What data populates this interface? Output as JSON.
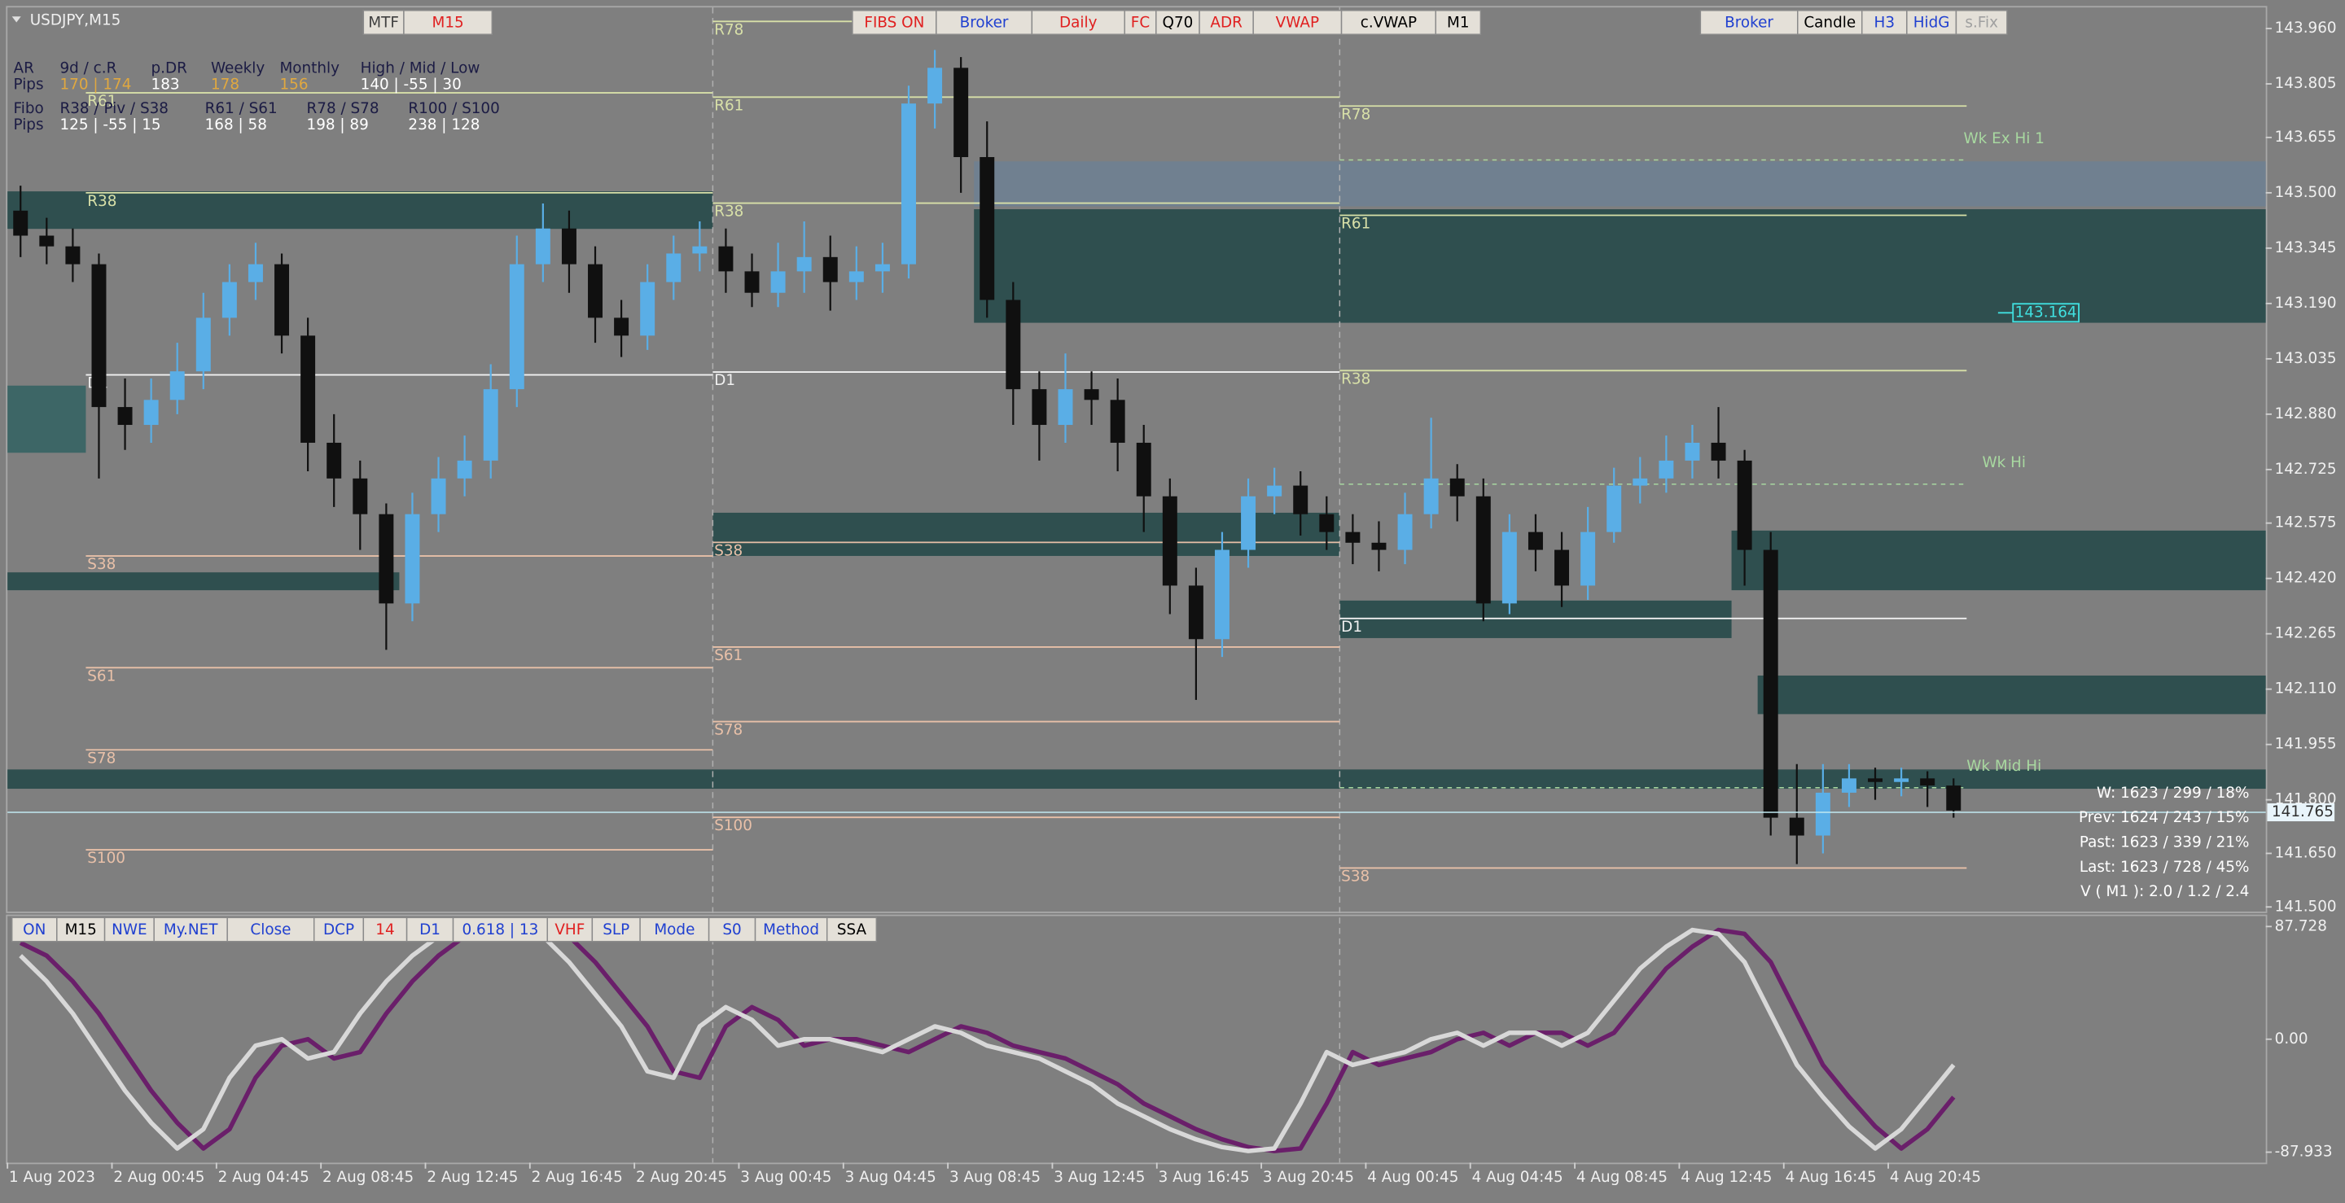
{
  "window": {
    "title": "USDJPY,M15"
  },
  "toolbar_top": [
    {
      "label": "MTF",
      "color": "#404040"
    },
    {
      "label": "M15",
      "color": "#e02020"
    },
    {
      "label": "FIBS ON",
      "color": "#e02020"
    },
    {
      "label": "Broker",
      "color": "#2040d0"
    },
    {
      "label": "Daily",
      "color": "#e02020"
    },
    {
      "label": "FC",
      "color": "#e02020"
    },
    {
      "label": "Q70",
      "color": "#000000"
    },
    {
      "label": "ADR",
      "color": "#e02020"
    },
    {
      "label": "VWAP",
      "color": "#e02020"
    },
    {
      "label": "c.VWAP",
      "color": "#000000"
    },
    {
      "label": "M1",
      "color": "#000000"
    }
  ],
  "toolbar_right": [
    {
      "label": "Broker",
      "color": "#2040d0"
    },
    {
      "label": "Candle",
      "color": "#000000"
    },
    {
      "label": "H3",
      "color": "#2040d0"
    },
    {
      "label": "HidG",
      "color": "#2040d0"
    },
    {
      "label": "s.Fix",
      "color": "#a0a0a0"
    }
  ],
  "toolbar_bottom": [
    {
      "label": "ON",
      "color": "#2040d0"
    },
    {
      "label": "M15",
      "color": "#000000"
    },
    {
      "label": "NWE",
      "color": "#2040d0"
    },
    {
      "label": "My.NET",
      "color": "#2040d0"
    },
    {
      "label": "Close",
      "color": "#2040d0"
    },
    {
      "label": "DCP",
      "color": "#2040d0"
    },
    {
      "label": "14",
      "color": "#e02020"
    },
    {
      "label": "D1",
      "color": "#2040d0"
    },
    {
      "label": "0.618 | 13",
      "color": "#2040d0"
    },
    {
      "label": "VHF",
      "color": "#e02020"
    },
    {
      "label": "SLP",
      "color": "#2040d0"
    },
    {
      "label": "Mode",
      "color": "#2040d0"
    },
    {
      "label": "S0",
      "color": "#2040d0"
    },
    {
      "label": "Method",
      "color": "#2040d0"
    },
    {
      "label": "SSA",
      "color": "#000000"
    }
  ],
  "info_table": {
    "rows": [
      [
        "AR",
        "9d / c.R",
        "p.DR",
        "Weekly",
        "Monthly",
        "High / Mid / Low"
      ],
      [
        "Pips",
        "170 | 174",
        "183",
        "178",
        "156",
        "140 | -55 | 30"
      ],
      [
        "Fibo",
        "R38 / Piv / S38",
        "R61 / S61",
        "R78 / S78",
        "R100 / S100"
      ],
      [
        "Pips",
        "125 | -55 | 15",
        "168 | 58",
        "198 | 89",
        "238 | 128"
      ]
    ]
  },
  "stats": [
    "W: 1623 / 299 / 18%",
    "Prev: 1624 / 243 / 15%",
    "Past: 1623 / 339 / 21%",
    "Last: 1623 / 728 / 45%",
    "V ( M1 ): 2.0 / 1.2 / 2.4"
  ],
  "chart_data": [
    {
      "type": "candlestick",
      "categories": [
        "1 Aug 2023",
        null,
        null,
        null,
        "2 Aug 00:45",
        null,
        null,
        null,
        "2 Aug 04:45",
        null,
        null,
        null,
        "2 Aug 08:45",
        null,
        null,
        null,
        "2 Aug 12:45",
        null,
        null,
        null,
        "2 Aug 16:45",
        null,
        null,
        null,
        "2 Aug 20:45",
        null,
        null,
        null,
        "3 Aug 00:45",
        null,
        null,
        null,
        "3 Aug 04:45",
        null,
        null,
        null,
        "3 Aug 08:45",
        null,
        null,
        null,
        "3 Aug 12:45",
        null,
        null,
        null,
        "3 Aug 16:45",
        null,
        null,
        null,
        "3 Aug 20:45",
        null,
        null,
        null,
        "4 Aug 00:45",
        null,
        null,
        null,
        "4 Aug 04:45",
        null,
        null,
        null,
        "4 Aug 08:45",
        null,
        null,
        null,
        "4 Aug 12:45",
        null,
        null,
        null,
        "4 Aug 16:45",
        null,
        null,
        null,
        "4 Aug 20:45",
        null,
        null
      ],
      "open": [
        143.45,
        143.38,
        143.35,
        143.3,
        142.9,
        142.85,
        142.92,
        143.0,
        143.15,
        143.25,
        143.3,
        143.1,
        142.8,
        142.7,
        142.6,
        142.35,
        142.6,
        142.7,
        142.75,
        142.95,
        143.3,
        143.4,
        143.3,
        143.15,
        143.1,
        143.25,
        143.33,
        143.35,
        143.28,
        143.22,
        143.28,
        143.32,
        143.25,
        143.28,
        143.3,
        143.75,
        143.85,
        143.6,
        143.2,
        142.95,
        142.85,
        142.95,
        142.92,
        142.8,
        142.65,
        142.4,
        142.25,
        142.5,
        142.65,
        142.68,
        142.6,
        142.55,
        142.52,
        142.5,
        142.6,
        142.7,
        142.65,
        142.35,
        142.55,
        142.5,
        142.4,
        142.55,
        142.68,
        142.7,
        142.75,
        142.8,
        142.75,
        142.5,
        141.75,
        141.7,
        141.82,
        141.86,
        141.85,
        141.86,
        141.84
      ],
      "high": [
        143.52,
        143.43,
        143.4,
        143.33,
        142.98,
        142.98,
        143.08,
        143.22,
        143.3,
        143.36,
        143.33,
        143.15,
        142.88,
        142.75,
        142.63,
        142.66,
        142.76,
        142.82,
        143.02,
        143.38,
        143.47,
        143.45,
        143.35,
        143.2,
        143.3,
        143.38,
        143.42,
        143.4,
        143.33,
        143.36,
        143.42,
        143.38,
        143.35,
        143.36,
        143.8,
        143.9,
        143.88,
        143.7,
        143.25,
        143.0,
        143.05,
        143.0,
        142.98,
        142.85,
        142.7,
        142.45,
        142.55,
        142.7,
        142.73,
        142.72,
        142.65,
        142.6,
        142.58,
        142.66,
        142.87,
        142.74,
        142.7,
        142.6,
        142.6,
        142.55,
        142.62,
        142.73,
        142.76,
        142.82,
        142.85,
        142.9,
        142.78,
        142.55,
        141.9,
        141.9,
        141.9,
        141.89,
        141.89,
        141.88,
        141.86
      ],
      "low": [
        143.32,
        143.3,
        143.25,
        142.7,
        142.78,
        142.8,
        142.88,
        142.95,
        143.1,
        143.2,
        143.05,
        142.72,
        142.62,
        142.5,
        142.22,
        142.3,
        142.55,
        142.65,
        142.7,
        142.9,
        143.25,
        143.22,
        143.08,
        143.04,
        143.06,
        143.2,
        143.28,
        143.22,
        143.18,
        143.18,
        143.22,
        143.17,
        143.2,
        143.22,
        143.26,
        143.68,
        143.5,
        143.15,
        142.85,
        142.75,
        142.8,
        142.85,
        142.72,
        142.55,
        142.32,
        142.08,
        142.2,
        142.45,
        142.6,
        142.54,
        142.5,
        142.46,
        142.44,
        142.46,
        142.56,
        142.58,
        142.3,
        142.32,
        142.44,
        142.34,
        142.36,
        142.52,
        142.63,
        142.66,
        142.7,
        142.7,
        142.4,
        141.7,
        141.62,
        141.65,
        141.78,
        141.8,
        141.81,
        141.78,
        141.75
      ],
      "close": [
        143.38,
        143.35,
        143.3,
        142.9,
        142.85,
        142.92,
        143.0,
        143.15,
        143.25,
        143.3,
        143.1,
        142.8,
        142.7,
        142.6,
        142.35,
        142.6,
        142.7,
        142.75,
        142.95,
        143.3,
        143.4,
        143.3,
        143.15,
        143.1,
        143.25,
        143.33,
        143.35,
        143.28,
        143.22,
        143.28,
        143.32,
        143.25,
        143.28,
        143.3,
        143.75,
        143.85,
        143.6,
        143.2,
        142.95,
        142.85,
        142.95,
        142.92,
        142.8,
        142.65,
        142.4,
        142.25,
        142.5,
        142.65,
        142.68,
        142.6,
        142.55,
        142.52,
        142.5,
        142.6,
        142.7,
        142.65,
        142.35,
        142.55,
        142.5,
        142.4,
        142.55,
        142.68,
        142.7,
        142.75,
        142.8,
        142.75,
        142.5,
        141.75,
        141.7,
        141.82,
        141.86,
        141.85,
        141.86,
        141.84,
        141.77
      ],
      "up_color": "#5aaee6",
      "down_color": "#101010",
      "ylim": [
        141.487,
        144.019
      ],
      "yticks": [
        {
          "value": 143.96,
          "label": "143.960"
        },
        {
          "value": 143.805,
          "label": "143.805"
        },
        {
          "value": 143.655,
          "label": "143.655"
        },
        {
          "value": 143.5,
          "label": "143.500"
        },
        {
          "value": 143.345,
          "label": "143.345"
        },
        {
          "value": 143.19,
          "label": "143.190"
        },
        {
          "value": 143.035,
          "label": "143.035"
        },
        {
          "value": 142.88,
          "label": "142.880"
        },
        {
          "value": 142.725,
          "label": "142.725"
        },
        {
          "value": 142.575,
          "label": "142.575"
        },
        {
          "value": 142.42,
          "label": "142.420"
        },
        {
          "value": 142.265,
          "label": "142.265"
        },
        {
          "value": 142.11,
          "label": "142.110"
        },
        {
          "value": 141.955,
          "label": "141.955"
        },
        {
          "value": 141.8,
          "label": "141.800"
        },
        {
          "value": 141.65,
          "label": "141.650"
        },
        {
          "value": 141.5,
          "label": "141.500"
        }
      ],
      "zones": [
        {
          "low": 143.399,
          "high": 143.504,
          "start": 0,
          "end": 26,
          "color": "#2f4f4f"
        },
        {
          "low": 142.772,
          "high": 142.96,
          "start": 0,
          "end": 2,
          "color": "#3d6666"
        },
        {
          "low": 142.387,
          "high": 142.437,
          "start": 0,
          "end": 14,
          "color": "#2f4f4f"
        },
        {
          "low": 142.483,
          "high": 142.604,
          "start": 27,
          "end": 50,
          "color": "#2f4f4f"
        },
        {
          "low": 142.253,
          "high": 142.358,
          "start": 51,
          "end": 65,
          "color": "#2f4f4f"
        },
        {
          "low": 141.831,
          "high": 141.885,
          "start": 0,
          "end": 74,
          "extend": true,
          "color": "#2f4f4f"
        },
        {
          "low": 143.136,
          "high": 143.454,
          "start": 37,
          "end": 74,
          "extend": true,
          "color": "#2f4f4f"
        },
        {
          "low": 143.462,
          "high": 143.588,
          "start": 37,
          "end": 74,
          "extend": true,
          "color": "#708090"
        },
        {
          "low": 142.387,
          "high": 142.554,
          "start": 66,
          "end": 74,
          "extend": true,
          "color": "#2f4f4f"
        },
        {
          "low": 142.04,
          "high": 142.148,
          "start": 67,
          "end": 74,
          "extend": true,
          "color": "#2f4f4f"
        }
      ],
      "levels": [
        {
          "label": "R61",
          "value": 143.78,
          "start": 3,
          "end": 26,
          "color": "#d8e0a8"
        },
        {
          "label": "R38",
          "value": 143.5,
          "start": 3,
          "end": 26,
          "color": "#d8e0a8"
        },
        {
          "label": "D1",
          "value": 142.99,
          "start": 3,
          "end": 26,
          "color": "#f0f0f0"
        },
        {
          "label": "S38",
          "value": 142.483,
          "start": 3,
          "end": 26,
          "color": "#e8c0a8"
        },
        {
          "label": "S61",
          "value": 142.17,
          "start": 3,
          "end": 26,
          "color": "#e8c0a8"
        },
        {
          "label": "S78",
          "value": 141.94,
          "start": 3,
          "end": 26,
          "color": "#e8c0a8"
        },
        {
          "label": "S100",
          "value": 141.66,
          "start": 3,
          "end": 26,
          "color": "#e8c0a8"
        },
        {
          "label": "R78",
          "value": 143.98,
          "start": 27,
          "end": 50,
          "color": "#d8e0a8"
        },
        {
          "label": "R61",
          "value": 143.768,
          "start": 27,
          "end": 50,
          "color": "#d8e0a8"
        },
        {
          "label": "R38",
          "value": 143.471,
          "start": 27,
          "end": 50,
          "color": "#d8e0a8"
        },
        {
          "label": "D1",
          "value": 142.998,
          "start": 27,
          "end": 50,
          "color": "#f0f0f0"
        },
        {
          "label": "S38",
          "value": 142.521,
          "start": 27,
          "end": 50,
          "color": "#e8c0a8"
        },
        {
          "label": "S61",
          "value": 142.228,
          "start": 27,
          "end": 50,
          "color": "#e8c0a8"
        },
        {
          "label": "S78",
          "value": 142.019,
          "start": 27,
          "end": 50,
          "color": "#e8c0a8"
        },
        {
          "label": "S100",
          "value": 141.751,
          "start": 27,
          "end": 50,
          "color": "#e8c0a8"
        },
        {
          "label": "R78",
          "value": 143.743,
          "start": 51,
          "end": 74,
          "color": "#d8e0a8"
        },
        {
          "label": "R61",
          "value": 143.437,
          "start": 51,
          "end": 74,
          "color": "#d8e0a8"
        },
        {
          "label": "R38",
          "value": 143.002,
          "start": 51,
          "end": 74,
          "color": "#d8e0a8"
        },
        {
          "label": "D1",
          "value": 142.308,
          "start": 51,
          "end": 74,
          "color": "#f0f0f0"
        },
        {
          "label": "S38",
          "value": 141.609,
          "start": 51,
          "end": 74,
          "color": "#e8c0a8"
        }
      ],
      "weekly_levels": [
        {
          "label": "Wk Ex Hi 1",
          "value": 143.592,
          "color": "#a8d8a0"
        },
        {
          "label": "Wk Hi",
          "value": 142.684,
          "color": "#a8d8a0"
        },
        {
          "label": "Wk Mid Hi",
          "value": 141.834,
          "color": "#a8d8a0"
        }
      ],
      "price_marker": 143.164,
      "last_price": 141.765
    },
    {
      "type": "line",
      "ylim": [
        -96.1,
        94.7
      ],
      "yticks": [
        87.728,
        {
          "value": 0,
          "label": "0.00"
        },
        -87.933
      ],
      "series": [
        {
          "color": "#6a1f6a",
          "values": [
            75,
            65,
            45,
            20,
            -10,
            -40,
            -65,
            -85,
            -70,
            -30,
            -5,
            0,
            -15,
            -10,
            20,
            45,
            65,
            80,
            85,
            87,
            88,
            80,
            60,
            35,
            10,
            -25,
            -30,
            10,
            25,
            15,
            -5,
            0,
            0,
            -5,
            -10,
            0,
            10,
            5,
            -5,
            -10,
            -15,
            -25,
            -35,
            -50,
            -60,
            -70,
            -78,
            -84,
            -87,
            -85,
            -50,
            -10,
            -20,
            -15,
            -10,
            0,
            5,
            -5,
            5,
            5,
            -5,
            5,
            30,
            55,
            72,
            85,
            82,
            60,
            20,
            -20,
            -45,
            -68,
            -85,
            -70,
            -45
          ]
        },
        {
          "color": "#d8d8d8",
          "values": [
            65,
            45,
            20,
            -10,
            -40,
            -65,
            -85,
            -70,
            -30,
            -5,
            0,
            -15,
            -10,
            20,
            45,
            65,
            80,
            85,
            87,
            88,
            80,
            60,
            35,
            10,
            -25,
            -30,
            10,
            25,
            15,
            -5,
            0,
            0,
            -5,
            -10,
            0,
            10,
            5,
            -5,
            -10,
            -15,
            -25,
            -35,
            -50,
            -60,
            -70,
            -78,
            -84,
            -87,
            -85,
            -50,
            -10,
            -20,
            -15,
            -10,
            0,
            5,
            -5,
            5,
            5,
            -5,
            5,
            30,
            55,
            72,
            85,
            82,
            60,
            20,
            -20,
            -45,
            -68,
            -85,
            -70,
            -45,
            -20
          ]
        }
      ]
    }
  ]
}
